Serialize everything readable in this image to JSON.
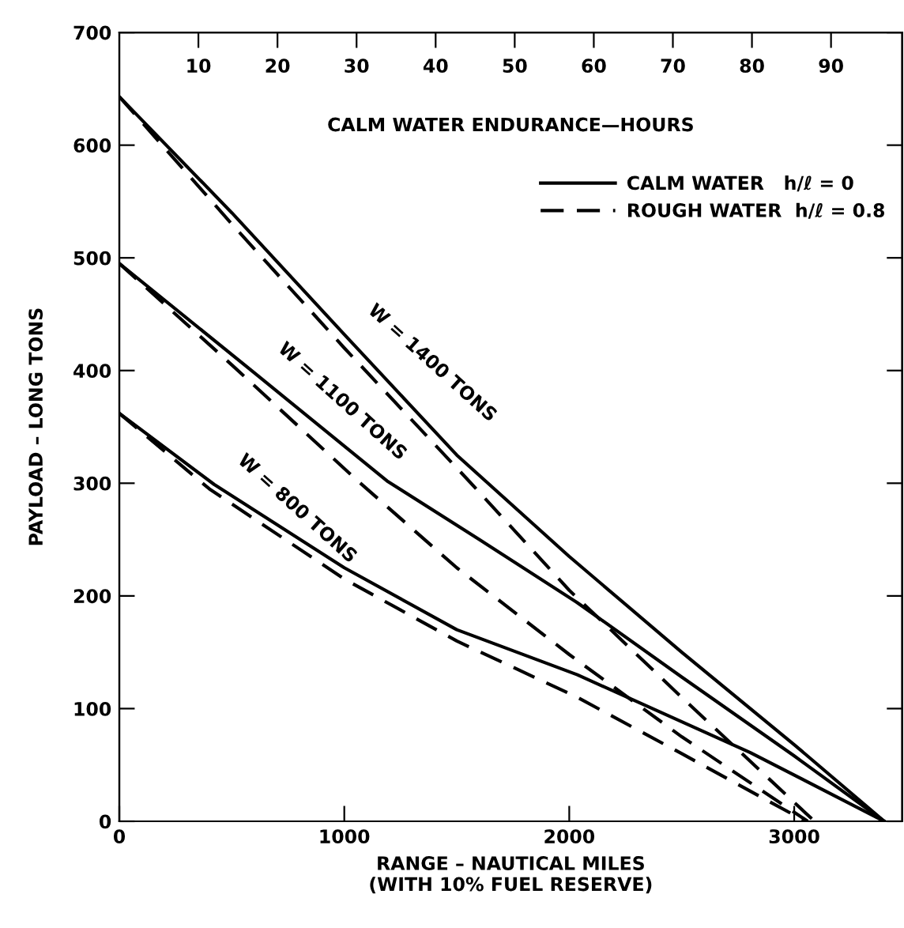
{
  "chart_data": {
    "type": "line",
    "xlabel": "RANGE – NAUTICAL MILES\n(WITH 10% FUEL RESERVE)",
    "ylabel": "PAYLOAD – LONG TONS",
    "x2label": "CALM WATER ENDURANCE—HOURS",
    "xlim": [
      0,
      3480
    ],
    "xticks": [
      0,
      1000,
      2000,
      3000
    ],
    "ylim": [
      0,
      700
    ],
    "yticks": [
      0,
      100,
      200,
      300,
      400,
      500,
      600,
      700
    ],
    "x2lim": [
      0,
      99
    ],
    "x2ticks": [
      10,
      20,
      30,
      40,
      50,
      60,
      70,
      80,
      90
    ],
    "grid": false,
    "legend": "top right",
    "marker": "none",
    "series": [
      {
        "name": "CALM WATER   h/ℓ = 0",
        "color": "#000000",
        "line_style": "solid",
        "x": [
          0,
          500,
          1000,
          1500,
          2000,
          2500,
          3000,
          3400
        ],
        "values": [
          643,
          540,
          432,
          325,
          235,
          150,
          68,
          0
        ]
      },
      {
        "name": "ROUGH WATER  h/ℓ = 0.8",
        "color": "#000000",
        "line_style": "dashed",
        "x": [
          0,
          500,
          1000,
          1554,
          2000,
          2500,
          3090
        ],
        "values": [
          643,
          530,
          420,
          302,
          205,
          110,
          0
        ]
      },
      {
        "color": "#000000",
        "line_style": "solid",
        "x": [
          0,
          600,
          1190,
          1600,
          2036,
          2500,
          3000,
          3400
        ],
        "values": [
          495,
          398,
          302,
          250,
          194,
          128,
          58,
          0
        ]
      },
      {
        "color": "#000000",
        "line_style": "dashed",
        "x": [
          0,
          500,
          1060,
          1500,
          2000,
          2500,
          3060
        ],
        "values": [
          495,
          405,
          302,
          225,
          148,
          75,
          0
        ]
      },
      {
        "color": "#000000",
        "line_style": "solid",
        "x": [
          0,
          421,
          1000,
          1500,
          2036,
          2805,
          3400
        ],
        "values": [
          362,
          299,
          225,
          170,
          130,
          61,
          0
        ]
      },
      {
        "color": "#000000",
        "line_style": "dashed",
        "x": [
          0,
          400,
          1000,
          1500,
          2036,
          2500,
          3050
        ],
        "values": [
          362,
          295,
          215,
          160,
          110,
          60,
          0
        ]
      }
    ],
    "annotations": [
      {
        "text": "W = 1400 TONS",
        "x": 1000,
        "y": 432
      },
      {
        "text": "W = 1100 TONS",
        "x": 600,
        "y": 398
      },
      {
        "text": "W = 800 TONS",
        "x": 421,
        "y": 299
      }
    ]
  }
}
